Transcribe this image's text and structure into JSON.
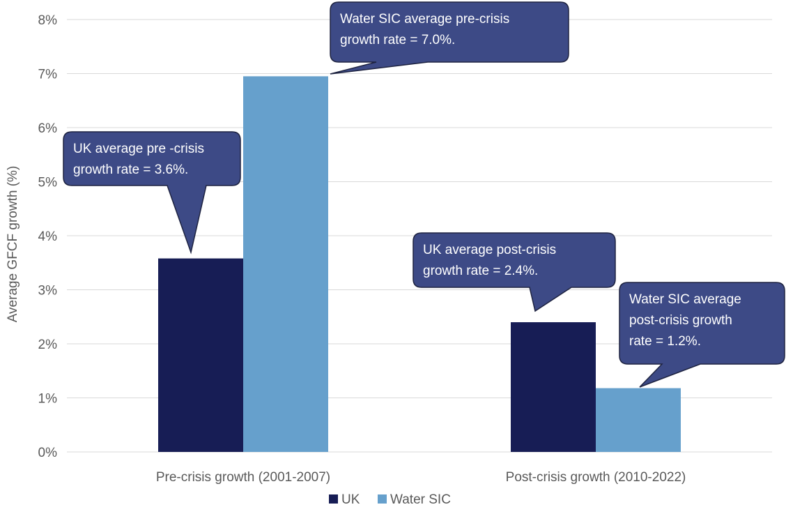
{
  "chart_data": {
    "type": "bar",
    "categories": [
      "Pre-crisis growth (2001-2007)",
      "Post-crisis growth (2010-2022)"
    ],
    "series": [
      {
        "name": "UK",
        "values": [
          3.58,
          2.4
        ]
      },
      {
        "name": "Water SIC",
        "values": [
          6.95,
          1.18
        ]
      }
    ],
    "ylabel": "Average GFCF growth (%)",
    "ylim": [
      0,
      8
    ],
    "yticks": [
      0,
      1,
      2,
      3,
      4,
      5,
      6,
      7,
      8
    ],
    "ytick_labels": [
      "0%",
      "1%",
      "2%",
      "3%",
      "4%",
      "5%",
      "6%",
      "7%",
      "8%"
    ],
    "grid": true,
    "legend_position": "bottom-center",
    "annotations": [
      {
        "lines": [
          "UK average pre -crisis",
          "growth rate = 3.6%."
        ],
        "points_to": {
          "series": 0,
          "category": 0
        }
      },
      {
        "lines": [
          "Water SIC average  pre-crisis",
          "growth rate = 7.0%."
        ],
        "points_to": {
          "series": 1,
          "category": 0
        }
      },
      {
        "lines": [
          "UK average  post-crisis",
          "growth rate = 2.4%."
        ],
        "points_to": {
          "series": 0,
          "category": 1
        }
      },
      {
        "lines": [
          "Water SIC average",
          "post-crisis growth",
          "rate = 1.2%."
        ],
        "points_to": {
          "series": 1,
          "category": 1
        }
      }
    ]
  },
  "colors": {
    "uk": "#171d55",
    "water_sic": "#66a0cc",
    "callout_fill": "#3d4a86",
    "callout_stroke": "#1e2340",
    "grid": "#d9d9d9",
    "text": "#595959"
  }
}
